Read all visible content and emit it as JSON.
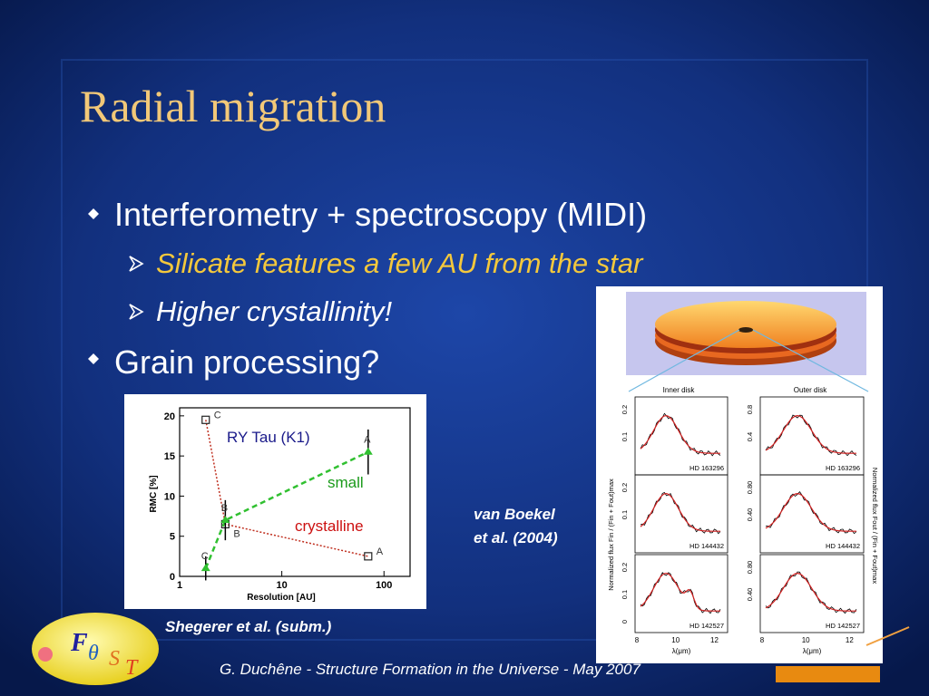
{
  "title": "Radial migration",
  "bullets": [
    {
      "text": "Interferometry + spectroscopy (MIDI)",
      "sub": [
        "Silicate features a few AU from the star",
        "Higher crystallinity!"
      ]
    },
    {
      "text": "Grain processing?"
    }
  ],
  "left_figure": {
    "xlabel": "Resolution [AU]",
    "ylabel": "RMC [%]",
    "log_x": true,
    "xlim": [
      1,
      180
    ],
    "ylim": [
      0,
      21
    ],
    "xticks": [
      1,
      10,
      100
    ],
    "yticks": [
      0,
      5,
      10,
      15,
      20
    ],
    "annotations": [
      "RY Tau (K1)",
      "small",
      "crystalline"
    ],
    "series": [
      {
        "color": "#c03020",
        "x": [
          1.8,
          2.8,
          70
        ],
        "values": [
          19.5,
          6.5,
          2.5
        ],
        "labels": [
          "C",
          "B",
          "A"
        ]
      },
      {
        "color": "#30c030",
        "x": [
          1.8,
          2.8,
          70
        ],
        "values": [
          1,
          7,
          15.5
        ],
        "errors": [
          1.5,
          2.5,
          2.8
        ],
        "labels": [
          "C",
          "B",
          "A"
        ]
      }
    ],
    "caption": "Shegerer et al. (subm.)"
  },
  "right_figure": {
    "panel_titles": [
      "Inner disk",
      "Outer disk"
    ],
    "stars": [
      "HD 163296",
      "HD 144432",
      "HD 142527"
    ],
    "left_yticks": [
      [
        "0.2",
        "0.1"
      ],
      [
        "0.2",
        "0.1"
      ],
      [
        "0.2",
        "0.1",
        "0"
      ]
    ],
    "right_yticks": [
      [
        "0.8",
        "0.4"
      ],
      [
        "0.80",
        "0.40"
      ],
      [
        "0.80",
        "0.40"
      ]
    ],
    "xticks": [
      "8",
      "10",
      "12"
    ],
    "xlabel": "λ(μm)",
    "left_ylabel": "Normalized flux Fin / (Fin + Fout)max",
    "right_ylabel": "Normalized flux Fout / (Fin + Fout)max"
  },
  "citation": [
    "van Boekel",
    "et al. (2004)"
  ],
  "footer": "G. Duchêne - Structure Formation in the Universe - May 2007",
  "logo": [
    "F",
    "θ",
    "S",
    "T"
  ]
}
